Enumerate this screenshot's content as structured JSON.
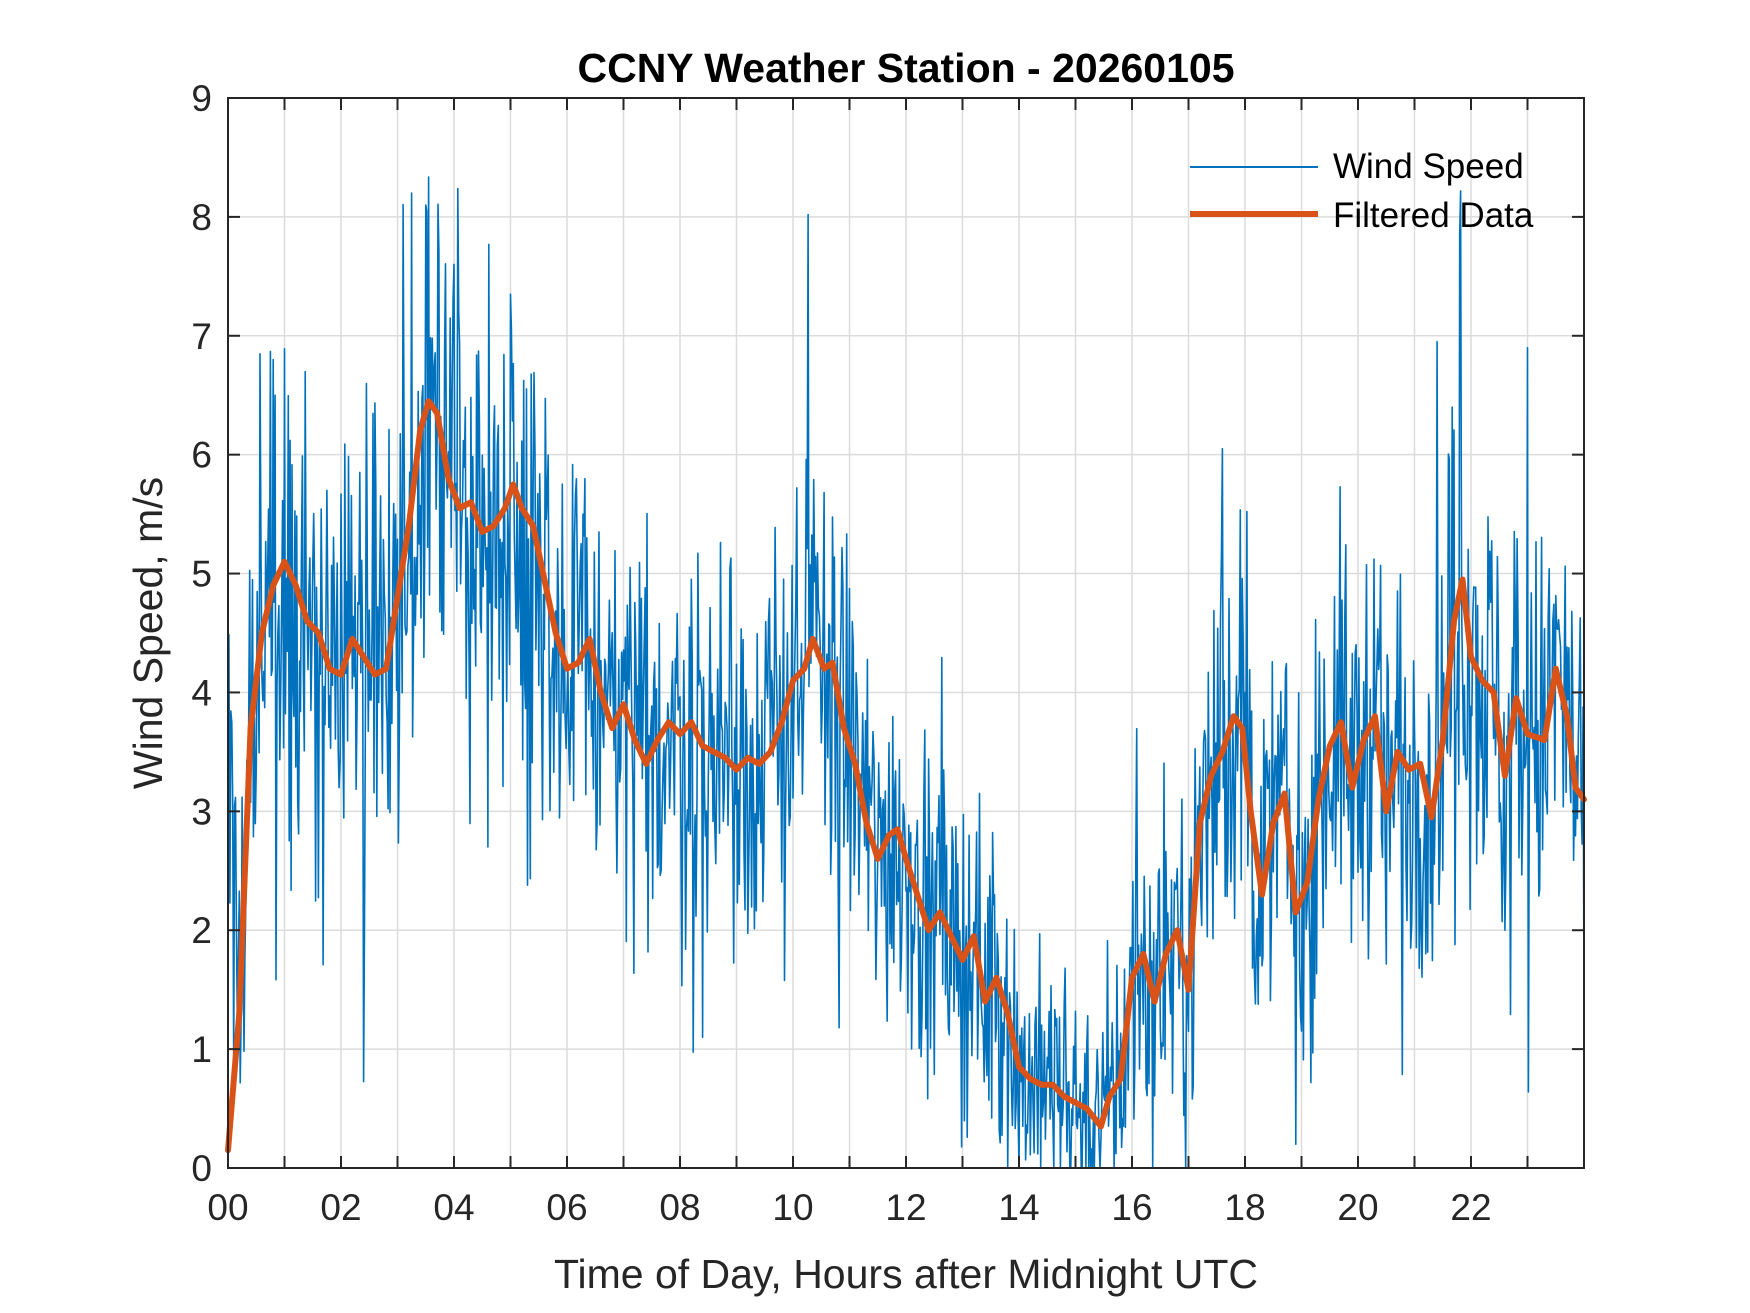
{
  "chart_data": {
    "type": "line",
    "title": "CCNY Weather Station - 20260105",
    "xlabel": "Time of Day, Hours after Midnight UTC",
    "ylabel": "Wind Speed, m/s",
    "xlim": [
      0,
      24
    ],
    "ylim": [
      0,
      9
    ],
    "grid": true,
    "legend_position": "top-right",
    "x_ticks": [
      0,
      2,
      4,
      6,
      8,
      10,
      12,
      14,
      16,
      18,
      20,
      22
    ],
    "x_tick_labels": [
      "00",
      "02",
      "04",
      "06",
      "08",
      "10",
      "12",
      "14",
      "16",
      "18",
      "20",
      "22"
    ],
    "x_minor_ticks_hourly": true,
    "y_ticks": [
      0,
      1,
      2,
      3,
      4,
      5,
      6,
      7,
      8,
      9
    ],
    "y_tick_labels": [
      "0",
      "1",
      "2",
      "3",
      "4",
      "5",
      "6",
      "7",
      "8",
      "9"
    ],
    "series": [
      {
        "name": "Wind Speed",
        "color": "#0072BD",
        "style": "thin",
        "description": "Raw 1-minute-ish samples, highly noisy; peaks ~8.2 m/s near 03:15 and ~7.8 m/s near 21:45; dips to 0 near 14:00-15:30",
        "noise_amplitude": 1.1,
        "notable_points": [
          {
            "x": 3.25,
            "y": 8.2
          },
          {
            "x": 3.5,
            "y": 8.1
          },
          {
            "x": 4.0,
            "y": 7.6
          },
          {
            "x": 5.0,
            "y": 7.35
          },
          {
            "x": 0.8,
            "y": 6.8
          },
          {
            "x": 21.8,
            "y": 7.85
          },
          {
            "x": 23.0,
            "y": 6.9
          },
          {
            "x": 21.4,
            "y": 6.95
          },
          {
            "x": 17.6,
            "y": 6.05
          },
          {
            "x": 8.4,
            "y": 1.1
          },
          {
            "x": 14.0,
            "y": 0.0
          },
          {
            "x": 15.3,
            "y": 0.0
          },
          {
            "x": 18.9,
            "y": 0.2
          },
          {
            "x": 24.0,
            "y": 1.35
          }
        ]
      },
      {
        "name": "Filtered Data",
        "color": "#D95319",
        "style": "thick",
        "x": [
          0,
          0.2,
          0.4,
          0.6,
          0.8,
          1.0,
          1.2,
          1.4,
          1.6,
          1.8,
          2.0,
          2.2,
          2.4,
          2.6,
          2.8,
          3.0,
          3.2,
          3.4,
          3.55,
          3.7,
          3.9,
          4.1,
          4.3,
          4.5,
          4.7,
          4.9,
          5.05,
          5.2,
          5.4,
          5.6,
          5.8,
          6.0,
          6.2,
          6.4,
          6.6,
          6.8,
          7.0,
          7.2,
          7.4,
          7.6,
          7.8,
          8.0,
          8.2,
          8.4,
          8.6,
          8.8,
          9.0,
          9.2,
          9.4,
          9.6,
          9.8,
          10.0,
          10.2,
          10.35,
          10.55,
          10.7,
          10.9,
          11.1,
          11.3,
          11.5,
          11.7,
          11.85,
          12.0,
          12.2,
          12.4,
          12.6,
          12.8,
          13.0,
          13.2,
          13.4,
          13.6,
          13.8,
          14.0,
          14.2,
          14.4,
          14.6,
          14.8,
          15.0,
          15.2,
          15.45,
          15.6,
          15.8,
          16.0,
          16.2,
          16.4,
          16.6,
          16.8,
          17.0,
          17.2,
          17.4,
          17.6,
          17.8,
          17.95,
          18.1,
          18.3,
          18.5,
          18.7,
          18.9,
          19.1,
          19.3,
          19.5,
          19.7,
          19.9,
          20.1,
          20.3,
          20.5,
          20.7,
          20.9,
          21.1,
          21.3,
          21.5,
          21.7,
          21.85,
          22.0,
          22.2,
          22.4,
          22.6,
          22.8,
          23.0,
          23.3,
          23.5,
          23.7,
          23.85,
          24.0
        ],
        "y": [
          0.15,
          1.3,
          3.7,
          4.5,
          4.9,
          5.1,
          4.9,
          4.6,
          4.5,
          4.2,
          4.15,
          4.45,
          4.3,
          4.15,
          4.2,
          4.8,
          5.4,
          6.2,
          6.45,
          6.35,
          5.8,
          5.55,
          5.6,
          5.35,
          5.4,
          5.55,
          5.75,
          5.55,
          5.4,
          4.95,
          4.5,
          4.2,
          4.25,
          4.45,
          4.0,
          3.7,
          3.9,
          3.6,
          3.4,
          3.6,
          3.75,
          3.65,
          3.75,
          3.55,
          3.5,
          3.45,
          3.35,
          3.45,
          3.4,
          3.5,
          3.75,
          4.1,
          4.2,
          4.45,
          4.2,
          4.25,
          3.7,
          3.4,
          2.9,
          2.6,
          2.8,
          2.85,
          2.6,
          2.3,
          2.0,
          2.15,
          1.95,
          1.75,
          1.95,
          1.4,
          1.6,
          1.3,
          0.85,
          0.75,
          0.7,
          0.7,
          0.6,
          0.55,
          0.5,
          0.35,
          0.6,
          0.75,
          1.6,
          1.8,
          1.4,
          1.8,
          2.0,
          1.5,
          2.9,
          3.3,
          3.5,
          3.8,
          3.7,
          3.0,
          2.3,
          2.9,
          3.15,
          2.15,
          2.4,
          3.1,
          3.55,
          3.75,
          3.2,
          3.6,
          3.8,
          3.0,
          3.5,
          3.35,
          3.4,
          2.95,
          3.6,
          4.6,
          4.95,
          4.3,
          4.1,
          4.0,
          3.3,
          3.95,
          3.65,
          3.6,
          4.2,
          3.8,
          3.2,
          3.1
        ]
      }
    ],
    "legend": [
      {
        "label": "Wind Speed",
        "color": "#0072BD"
      },
      {
        "label": "Filtered Data",
        "color": "#D95319"
      }
    ]
  }
}
